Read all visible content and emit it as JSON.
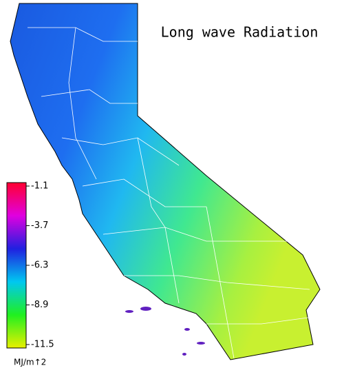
{
  "title": "Long wave Radiation",
  "colorbar": {
    "ticks": [
      -1.1,
      -3.7,
      -6.3,
      -8.9,
      -11.5
    ],
    "colors": [
      "#ff0030",
      "#e000e0",
      "#2020e0",
      "#00c8f0",
      "#20f020",
      "#e8f000"
    ],
    "unit": "MJ/m↑2"
  }
}
